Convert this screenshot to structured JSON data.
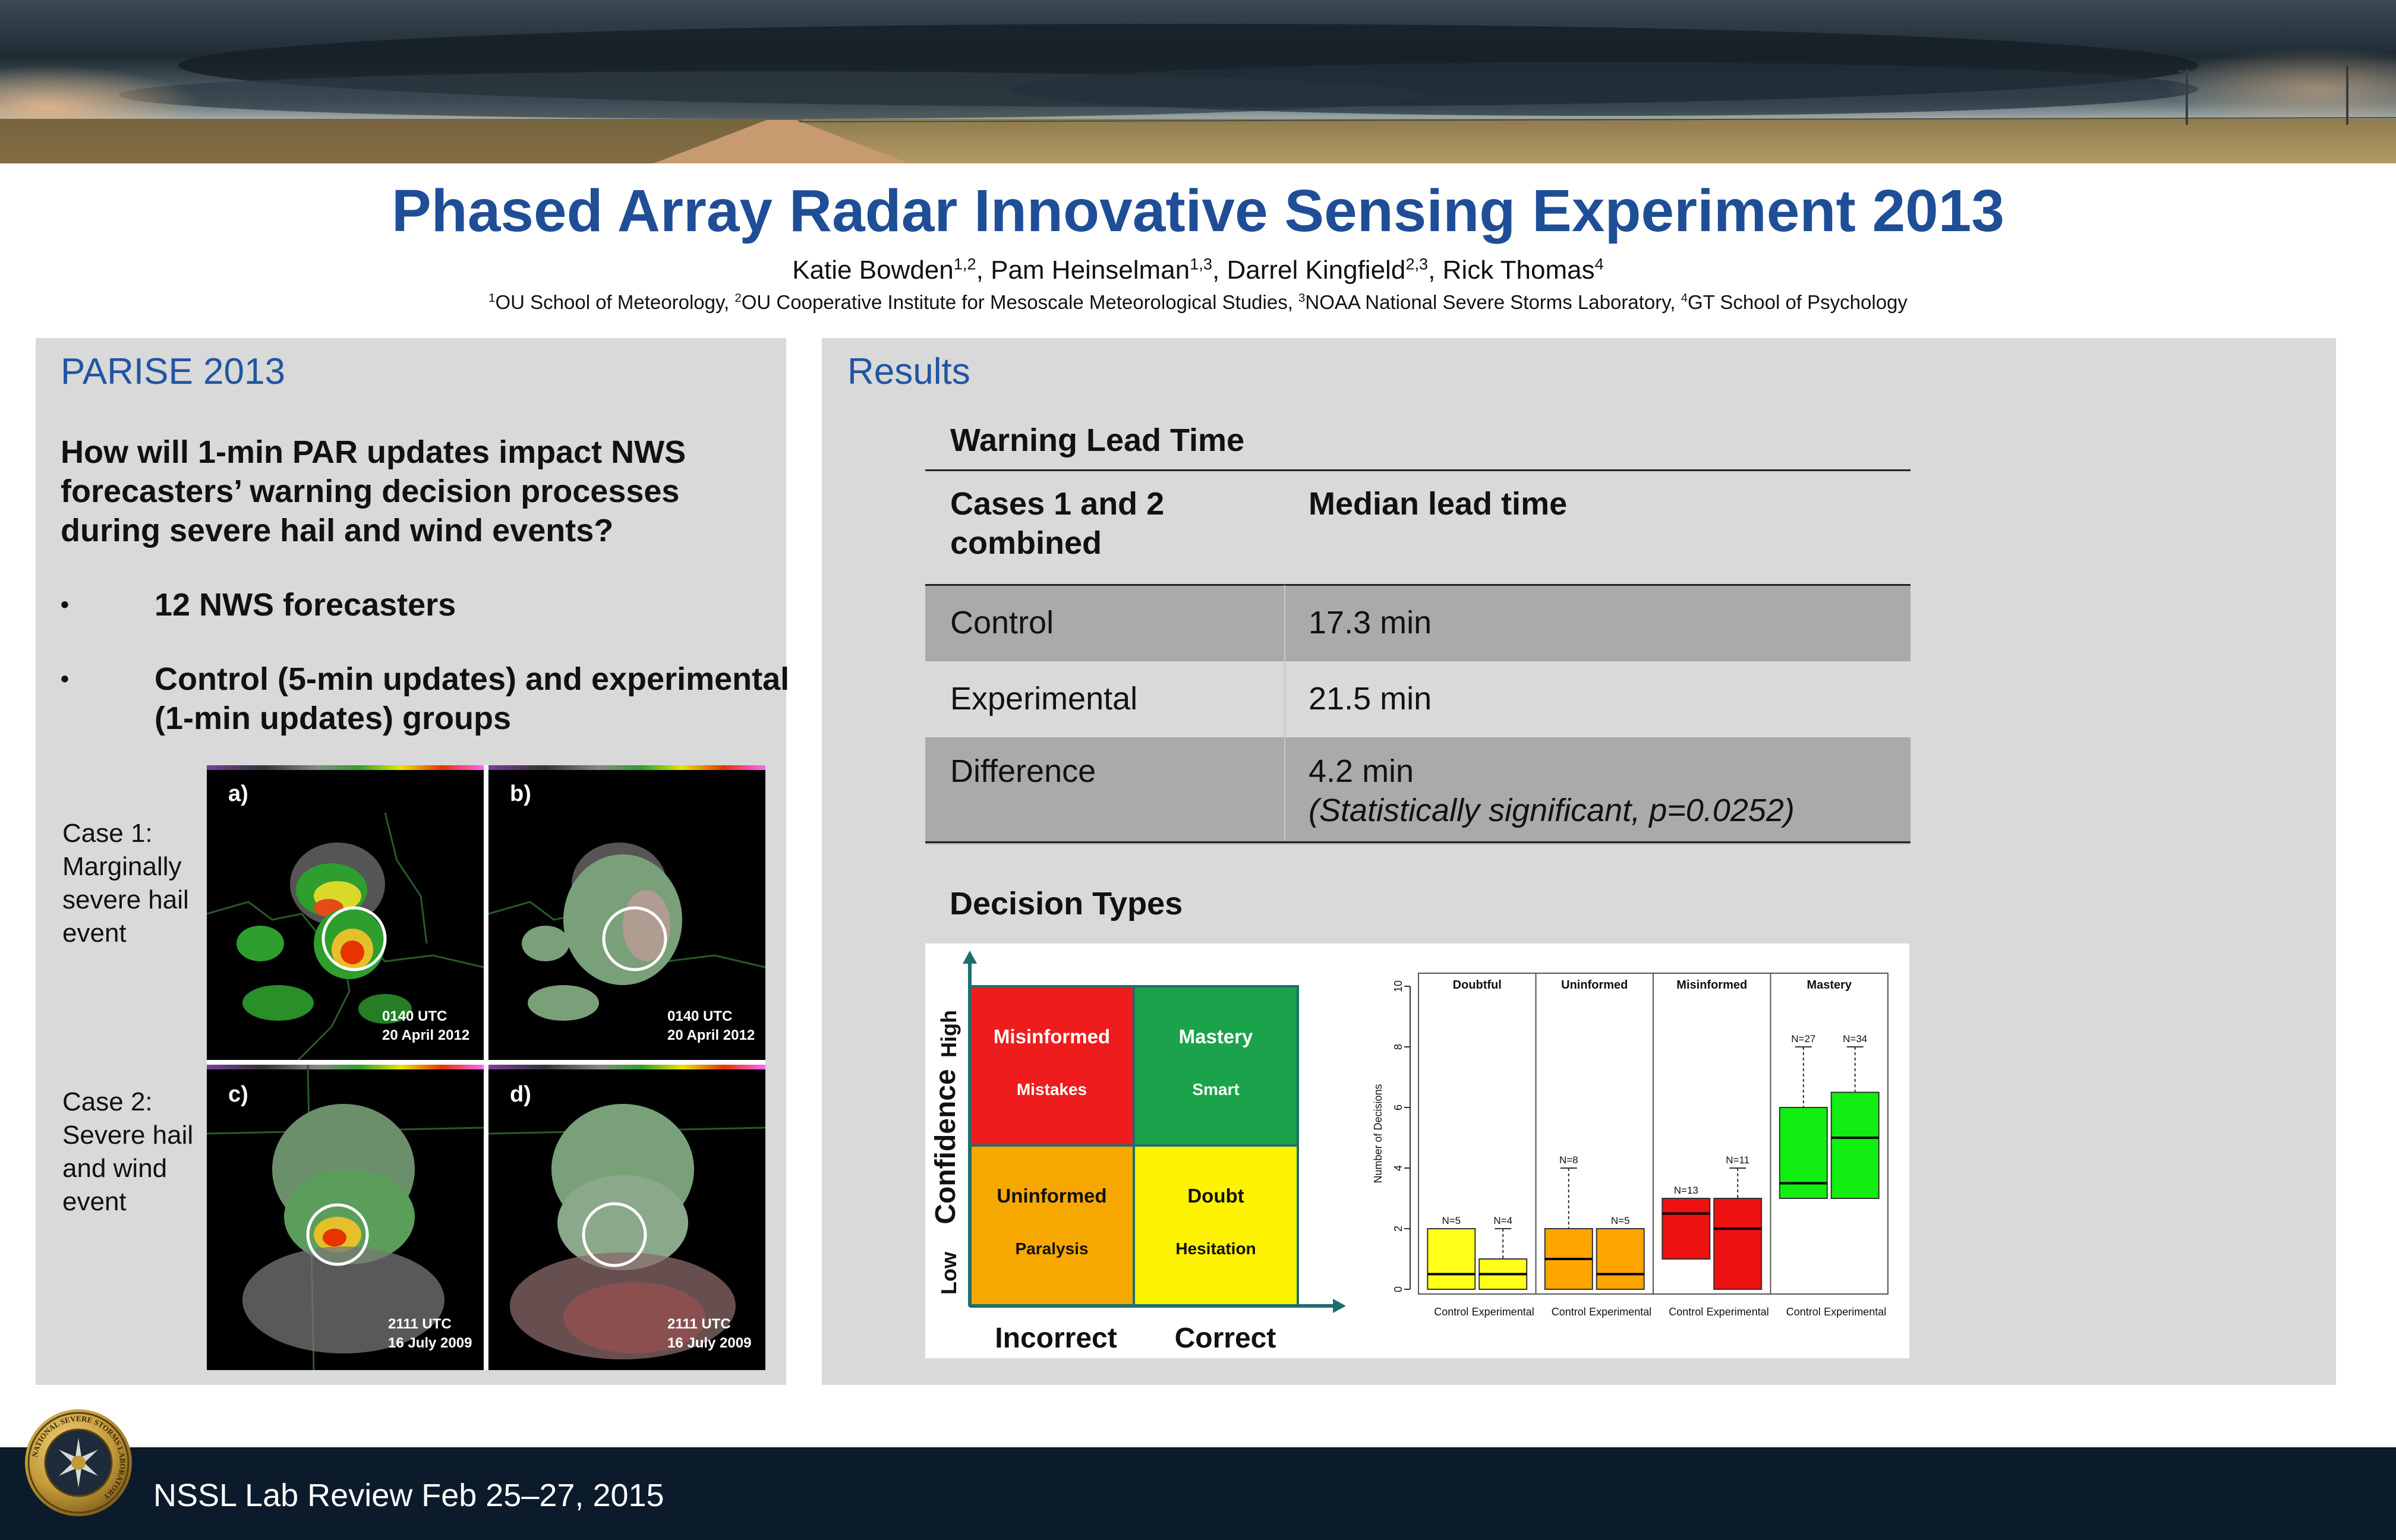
{
  "header": {
    "title": "Phased Array Radar Innovative Sensing Experiment 2013",
    "authors": [
      {
        "name": "Katie Bowden",
        "sup": "1,2",
        "sep": ", "
      },
      {
        "name": "Pam Heinselman",
        "sup": "1,3",
        "sep": ", "
      },
      {
        "name": "Darrel Kingfield",
        "sup": "2,3",
        "sep": ", "
      },
      {
        "name": "Rick Thomas",
        "sup": "4",
        "sep": ""
      }
    ],
    "affiliations": [
      {
        "sup": "1",
        "text": "OU School of Meteorology, "
      },
      {
        "sup": "2",
        "text": "OU Cooperative Institute for Mesoscale Meteorological Studies, "
      },
      {
        "sup": "3",
        "text": "NOAA National Severe Storms Laboratory, "
      },
      {
        "sup": "4",
        "text": "GT School of Psychology"
      }
    ]
  },
  "left_panel": {
    "title": "PARISE 2013",
    "question": "How will 1-min PAR updates impact NWS forecasters’ warning decision processes during severe hail and wind events?",
    "bullet_symbol": "•",
    "bullets": [
      "12 NWS forecasters",
      "Control (5-min updates) and experimental (1-min updates) groups"
    ],
    "cases": [
      {
        "label_lines": [
          "Case 1:",
          "Marginally",
          "severe hail",
          "event"
        ]
      },
      {
        "label_lines": [
          "Case 2:",
          "Severe hail",
          "and wind",
          "event"
        ]
      }
    ],
    "radar_panels": [
      {
        "letter": "a)",
        "time": "0140 UTC",
        "date": "20 April 2012"
      },
      {
        "letter": "b)",
        "time": "0140 UTC",
        "date": "20 April 2012"
      },
      {
        "letter": "c)",
        "time": "2111 UTC",
        "date": "16 July 2009"
      },
      {
        "letter": "d)",
        "time": "2111 UTC",
        "date": "16 July 2009"
      }
    ]
  },
  "right_panel": {
    "title": "Results",
    "lead_time_table": {
      "title": "Warning Lead Time",
      "header": [
        "Cases 1 and 2 combined",
        "Median lead time"
      ],
      "rows": [
        {
          "label": "Control",
          "value": "17.3 min",
          "note": ""
        },
        {
          "label": "Experimental",
          "value": "21.5 min",
          "note": ""
        },
        {
          "label": "Difference",
          "value": "4.2 min",
          "note": "(Statistically significant, p=0.0252)"
        }
      ]
    },
    "decision_types": {
      "title": "Decision Types",
      "y_label": "Confidence",
      "y_low": "Low",
      "y_high": "High",
      "x_incorrect": "Incorrect",
      "x_correct": "Correct",
      "quadrants": [
        {
          "title": "Misinformed",
          "sub": "Mistakes",
          "color": "#ee1c1c"
        },
        {
          "title": "Mastery",
          "sub": "Smart",
          "color": "#1aa34a"
        },
        {
          "title": "Uninformed",
          "sub": "Paralysis",
          "color": "#f7a800"
        },
        {
          "title": "Doubt",
          "sub": "Hesitation",
          "color": "#fdf200"
        }
      ]
    }
  },
  "chart_data": {
    "type": "box",
    "ylabel": "Number of Decisions",
    "ylim": [
      0,
      10
    ],
    "yticks": [
      0,
      2,
      4,
      6,
      8,
      10
    ],
    "panels": [
      {
        "title": "Doubtful",
        "color": "#ffff1a",
        "boxes": [
          {
            "group": "Control",
            "n": "N=5",
            "min": 0,
            "q1": 0,
            "median": 0.5,
            "q3": 2,
            "max": 2
          },
          {
            "group": "Experimental",
            "n": "N=4",
            "min": 0,
            "q1": 0,
            "median": 0.5,
            "q3": 1,
            "max": 2
          }
        ]
      },
      {
        "title": "Uninformed",
        "color": "#ffa500",
        "boxes": [
          {
            "group": "Control",
            "n": "N=8",
            "min": 0,
            "q1": 0,
            "median": 1,
            "q3": 2,
            "max": 4
          },
          {
            "group": "Experimental",
            "n": "N=5",
            "min": 0,
            "q1": 0,
            "median": 0.5,
            "q3": 2,
            "max": 2
          }
        ]
      },
      {
        "title": "Misinformed",
        "color": "#ee1111",
        "boxes": [
          {
            "group": "Control",
            "n": "N=13",
            "min": 1,
            "q1": 1,
            "median": 2.5,
            "q3": 3,
            "max": 3
          },
          {
            "group": "Experimental",
            "n": "N=11",
            "min": 0,
            "q1": 0,
            "median": 2,
            "q3": 3,
            "max": 4
          }
        ]
      },
      {
        "title": "Mastery",
        "color": "#11ee11",
        "boxes": [
          {
            "group": "Control",
            "n": "N=27",
            "min": 3,
            "q1": 3,
            "median": 3.5,
            "q3": 6,
            "max": 8
          },
          {
            "group": "Experimental",
            "n": "N=34",
            "min": 3,
            "q1": 3,
            "median": 5,
            "q3": 6.5,
            "max": 8
          }
        ]
      }
    ]
  },
  "footer": {
    "text": "NSSL Lab Review Feb 25–27, 2015",
    "seal_text": "NATIONAL SEVERE STORMS LABORATORY"
  }
}
